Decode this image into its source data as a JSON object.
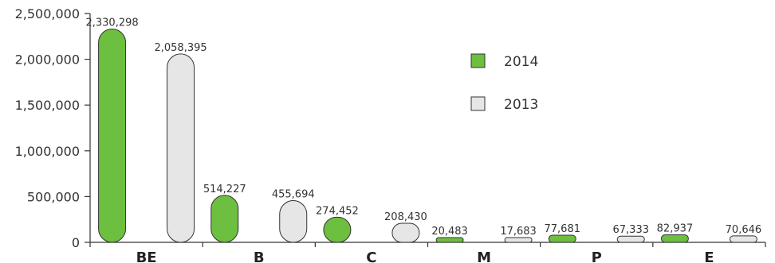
{
  "chart_data": {
    "type": "bar",
    "title": "",
    "xlabel": "",
    "ylabel": "",
    "categories": [
      "BE",
      "B",
      "C",
      "M",
      "P",
      "E"
    ],
    "series": [
      {
        "name": "2014",
        "values": [
          2330298,
          514227,
          274452,
          20483,
          77681,
          82937
        ],
        "labels": [
          "2,330,298",
          "514,227",
          "274,452",
          "20,483",
          "77,681",
          "82,937"
        ],
        "color": "#6dbf3f"
      },
      {
        "name": "2013",
        "values": [
          2058395,
          455694,
          208430,
          17683,
          67333,
          70646
        ],
        "labels": [
          "2,058,395",
          "455,694",
          "208,430",
          "17,683",
          "67,333",
          "70,646"
        ],
        "color": "#e6e6e6"
      }
    ],
    "ylim": [
      0,
      2500000
    ],
    "yticks": [
      0,
      500000,
      1000000,
      1500000,
      2000000,
      2500000
    ],
    "ytick_labels": [
      "0",
      "500,000",
      "1,000,000",
      "1,500,000",
      "2,000,000",
      "2,500,000"
    ],
    "grid": false,
    "legend_position": "top-right"
  }
}
